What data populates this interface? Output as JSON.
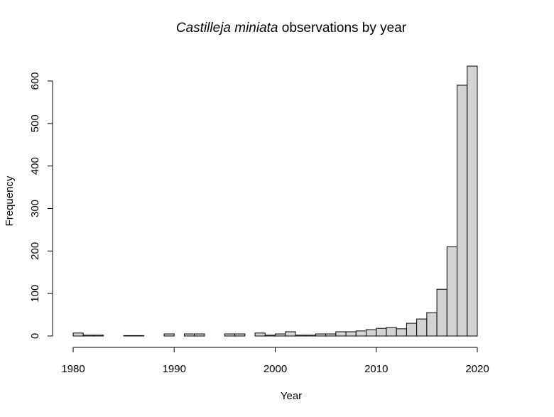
{
  "chart_data": {
    "type": "bar",
    "title_italic": "Castilleja miniata",
    "title_rest": " observations by year",
    "xlabel": "Year",
    "ylabel": "Frequency",
    "xlim": [
      1980,
      2020
    ],
    "ylim": [
      0,
      600
    ],
    "bin_width": 1,
    "x_ticks": [
      "1980",
      "1990",
      "2000",
      "2010",
      "2020"
    ],
    "y_ticks": [
      "0",
      "100",
      "200",
      "300",
      "400",
      "500",
      "600"
    ],
    "bins": [
      {
        "start": 1980,
        "value": 7
      },
      {
        "start": 1981,
        "value": 2
      },
      {
        "start": 1982,
        "value": 2
      },
      {
        "start": 1983,
        "value": 0
      },
      {
        "start": 1984,
        "value": 0
      },
      {
        "start": 1985,
        "value": 1
      },
      {
        "start": 1986,
        "value": 1
      },
      {
        "start": 1987,
        "value": 0
      },
      {
        "start": 1988,
        "value": 0
      },
      {
        "start": 1989,
        "value": 5
      },
      {
        "start": 1990,
        "value": 0
      },
      {
        "start": 1991,
        "value": 5
      },
      {
        "start": 1992,
        "value": 5
      },
      {
        "start": 1993,
        "value": 0
      },
      {
        "start": 1994,
        "value": 0
      },
      {
        "start": 1995,
        "value": 5
      },
      {
        "start": 1996,
        "value": 5
      },
      {
        "start": 1997,
        "value": 0
      },
      {
        "start": 1998,
        "value": 7
      },
      {
        "start": 1999,
        "value": 2
      },
      {
        "start": 2000,
        "value": 5
      },
      {
        "start": 2001,
        "value": 10
      },
      {
        "start": 2002,
        "value": 2
      },
      {
        "start": 2003,
        "value": 2
      },
      {
        "start": 2004,
        "value": 5
      },
      {
        "start": 2005,
        "value": 5
      },
      {
        "start": 2006,
        "value": 10
      },
      {
        "start": 2007,
        "value": 10
      },
      {
        "start": 2008,
        "value": 12
      },
      {
        "start": 2009,
        "value": 15
      },
      {
        "start": 2010,
        "value": 18
      },
      {
        "start": 2011,
        "value": 20
      },
      {
        "start": 2012,
        "value": 17
      },
      {
        "start": 2013,
        "value": 30
      },
      {
        "start": 2014,
        "value": 40
      },
      {
        "start": 2015,
        "value": 55
      },
      {
        "start": 2016,
        "value": 110
      },
      {
        "start": 2017,
        "value": 210
      },
      {
        "start": 2018,
        "value": 590
      },
      {
        "start": 2019,
        "value": 635
      }
    ]
  }
}
